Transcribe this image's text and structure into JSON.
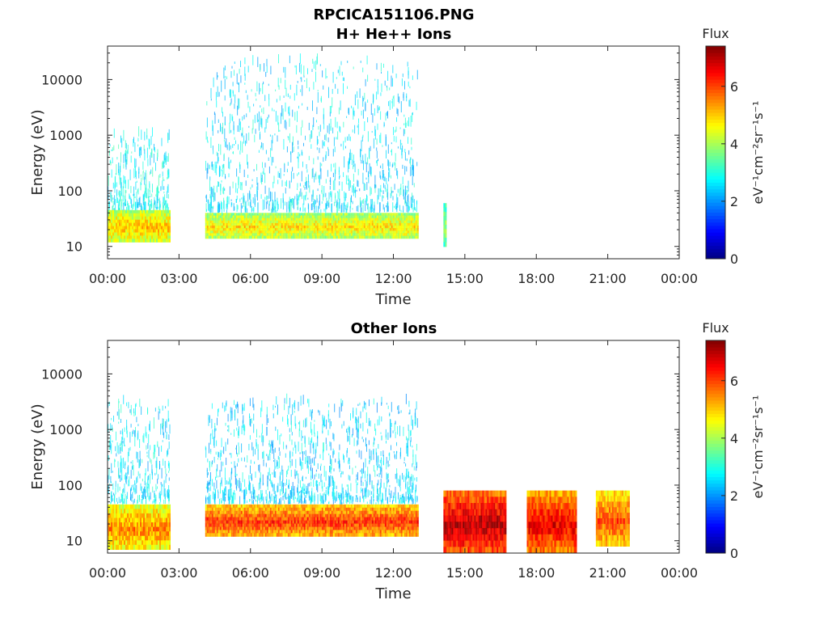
{
  "figure": {
    "title": "RPCICA151106.PNG"
  },
  "colors": {
    "axis": "#262626",
    "background": "#ffffff",
    "colormap": "jet"
  },
  "chart_data": [
    {
      "type": "heatmap",
      "title": "H+ He++ Ions",
      "xlabel": "Time",
      "ylabel": "Energy (eV)",
      "xticks": [
        "00:00",
        "03:00",
        "06:00",
        "09:00",
        "12:00",
        "15:00",
        "18:00",
        "21:00",
        "00:00"
      ],
      "yscale": "log",
      "yticks": [
        "10",
        "100",
        "1000",
        "10000"
      ],
      "xlim_hours": [
        0,
        24
      ],
      "ylim_eV": [
        6,
        40000
      ],
      "colorbar": {
        "label": "Flux",
        "unit": "eV⁻¹cm⁻²sr⁻¹s⁻¹",
        "ticks": [
          "0",
          "2",
          "4",
          "6"
        ],
        "range": [
          0,
          7.4
        ]
      },
      "blocks": [
        {
          "start_h": 0.0,
          "end_h": 2.6,
          "e_min": 12,
          "e_max": 45,
          "flux": 4.6
        },
        {
          "start_h": 4.1,
          "end_h": 13.0,
          "e_min": 14,
          "e_max": 40,
          "flux": 4.4
        },
        {
          "start_h": 14.1,
          "end_h": 14.2,
          "e_min": 10,
          "e_max": 60,
          "flux": 3.6
        }
      ],
      "sparse": [
        {
          "start_h": 0.0,
          "end_h": 2.6,
          "e_min": 40,
          "e_max": 1000,
          "flux": 2.8
        },
        {
          "start_h": 4.1,
          "end_h": 13.0,
          "e_min": 40,
          "e_max": 20000,
          "flux": 2.6
        }
      ]
    },
    {
      "type": "heatmap",
      "title": "Other Ions",
      "xlabel": "Time",
      "ylabel": "Energy (eV)",
      "xticks": [
        "00:00",
        "03:00",
        "06:00",
        "09:00",
        "12:00",
        "15:00",
        "18:00",
        "21:00",
        "00:00"
      ],
      "yscale": "log",
      "yticks": [
        "10",
        "100",
        "1000",
        "10000"
      ],
      "xlim_hours": [
        0,
        24
      ],
      "ylim_eV": [
        6,
        40000
      ],
      "colorbar": {
        "label": "Flux",
        "unit": "eV⁻¹cm⁻²sr⁻¹s⁻¹",
        "ticks": [
          "0",
          "2",
          "4",
          "6"
        ],
        "range": [
          0,
          7.4
        ]
      },
      "blocks": [
        {
          "start_h": 0.0,
          "end_h": 2.6,
          "e_min": 7,
          "e_max": 45,
          "flux": 5.0
        },
        {
          "start_h": 4.1,
          "end_h": 13.0,
          "e_min": 12,
          "e_max": 45,
          "flux": 5.6
        },
        {
          "start_h": 14.1,
          "end_h": 16.7,
          "e_min": 6,
          "e_max": 80,
          "flux": 6.4
        },
        {
          "start_h": 17.6,
          "end_h": 19.7,
          "e_min": 6,
          "e_max": 80,
          "flux": 6.0
        },
        {
          "start_h": 20.5,
          "end_h": 21.9,
          "e_min": 8,
          "e_max": 80,
          "flux": 5.4
        }
      ],
      "sparse": [
        {
          "start_h": 0.0,
          "end_h": 2.6,
          "e_min": 45,
          "e_max": 3000,
          "flux": 2.6
        },
        {
          "start_h": 4.1,
          "end_h": 13.0,
          "e_min": 45,
          "e_max": 3000,
          "flux": 2.5
        }
      ]
    }
  ]
}
